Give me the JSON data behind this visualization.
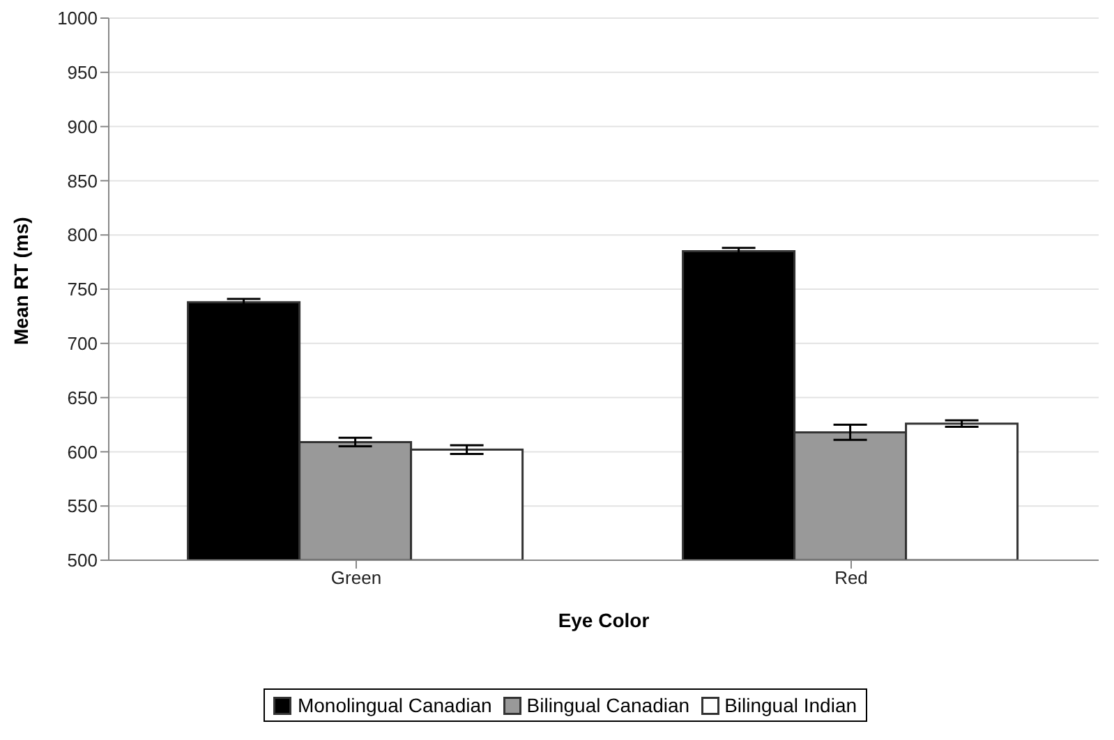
{
  "chart_data": {
    "type": "bar",
    "xlabel": "Eye Color",
    "ylabel": "Mean RT (ms)",
    "categories": [
      "Green",
      "Red"
    ],
    "series": [
      {
        "name": "Monolingual Canadian",
        "color": "#000000",
        "values": [
          738,
          785
        ],
        "errors": [
          3,
          3
        ]
      },
      {
        "name": "Bilingual Canadian",
        "color": "#999999",
        "values": [
          609,
          618
        ],
        "errors": [
          4,
          7
        ]
      },
      {
        "name": "Bilingual Indian",
        "color": "#ffffff",
        "values": [
          602,
          626
        ],
        "errors": [
          4,
          3
        ]
      }
    ],
    "ylim": [
      500,
      1000
    ],
    "yticks": [
      500,
      550,
      600,
      650,
      700,
      750,
      800,
      850,
      900,
      950,
      1000
    ],
    "grid": "y",
    "legend": "bottom"
  }
}
